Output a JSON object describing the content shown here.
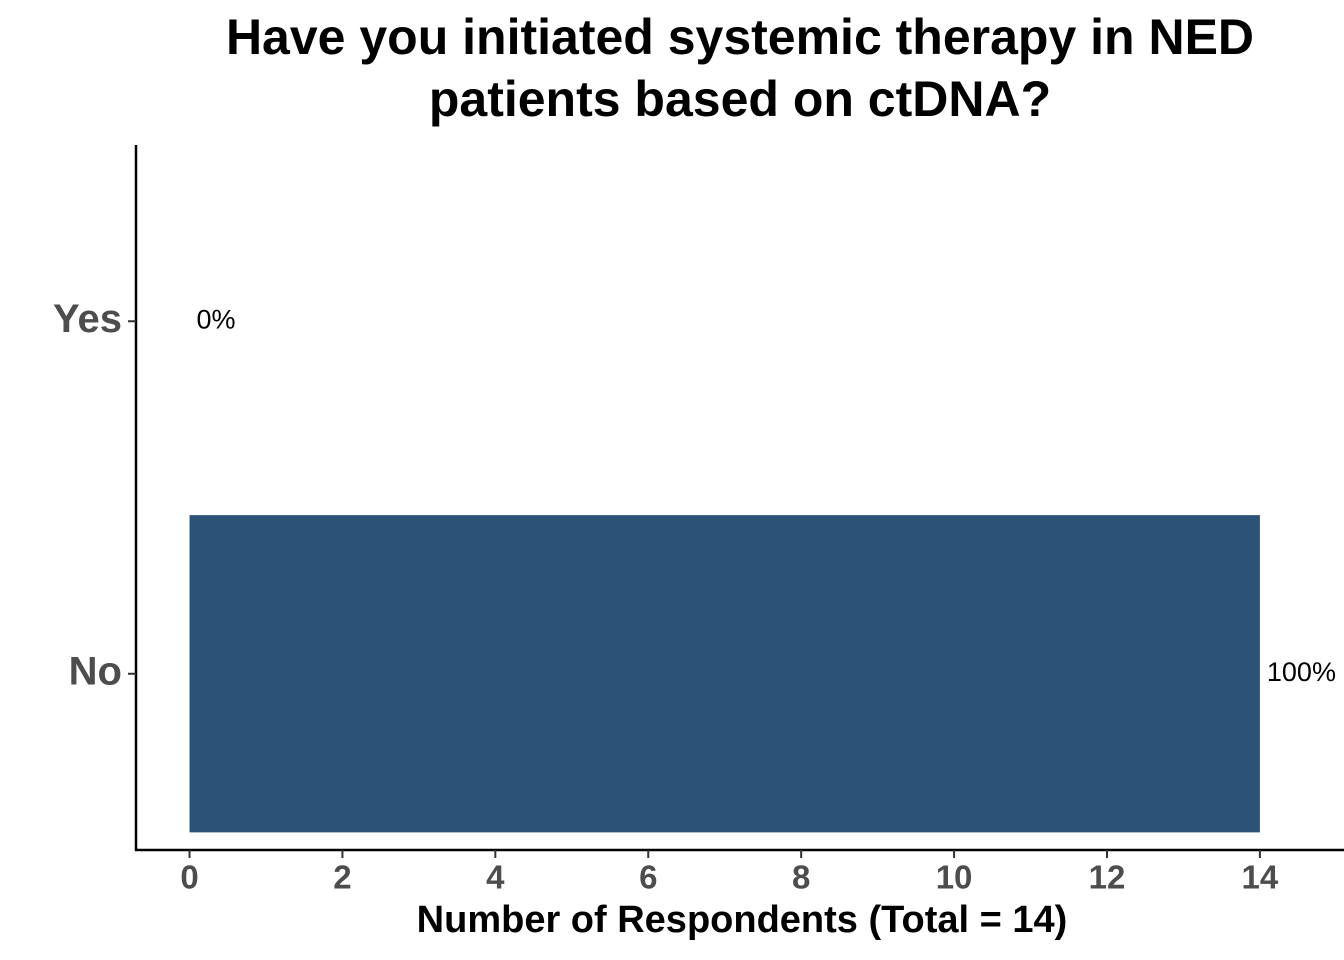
{
  "chart_data": {
    "type": "bar",
    "orientation": "horizontal",
    "title": "Have you initiated systemic therapy in NED patients based on ctDNA?",
    "x_label": "Number of Respondents (Total = 14)",
    "categories": [
      "Yes",
      "No"
    ],
    "values": [
      0,
      14
    ],
    "value_labels": [
      "0%",
      "100%"
    ],
    "color": "#2d5277",
    "xlim": [
      -0.7,
      15.1
    ],
    "xticks": [
      0,
      2,
      4,
      6,
      8,
      10,
      12,
      14
    ],
    "grid": false
  }
}
